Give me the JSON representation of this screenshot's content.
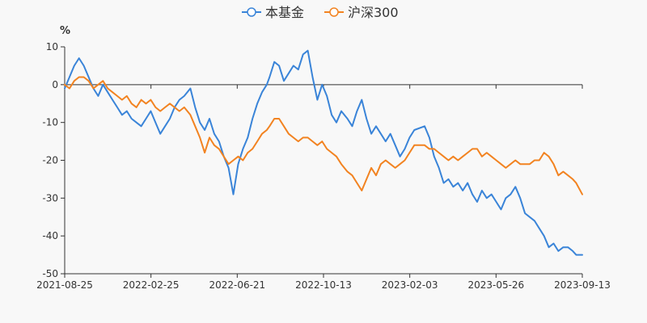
{
  "chart_data": {
    "type": "line",
    "ylabel": "%",
    "ylim": [
      -50,
      10
    ],
    "yticks": [
      10,
      0,
      -10,
      -20,
      -30,
      -40,
      -50
    ],
    "xticks": [
      "2021-08-25",
      "2022-02-25",
      "2022-06-21",
      "2022-10-13",
      "2023-02-03",
      "2023-05-26",
      "2023-09-13"
    ],
    "xlim": [
      "2021-08-25",
      "2023-09-22"
    ],
    "legend_position": "top-center",
    "grid": false,
    "series": [
      {
        "name": "本基金",
        "color": "#3a84d8",
        "points": [
          [
            "2021-08-25",
            -1
          ],
          [
            "2021-09-01",
            2
          ],
          [
            "2021-09-08",
            5
          ],
          [
            "2021-09-15",
            7
          ],
          [
            "2021-09-22",
            5
          ],
          [
            "2021-09-29",
            2
          ],
          [
            "2021-10-06",
            -1
          ],
          [
            "2021-10-13",
            -3
          ],
          [
            "2021-10-20",
            0
          ],
          [
            "2021-10-27",
            -2
          ],
          [
            "2021-11-03",
            -4
          ],
          [
            "2021-11-10",
            -6
          ],
          [
            "2021-11-17",
            -8
          ],
          [
            "2021-11-24",
            -7
          ],
          [
            "2021-12-01",
            -9
          ],
          [
            "2021-12-08",
            -10
          ],
          [
            "2021-12-15",
            -11
          ],
          [
            "2021-12-22",
            -9
          ],
          [
            "2021-12-29",
            -7
          ],
          [
            "2022-01-05",
            -10
          ],
          [
            "2022-01-12",
            -13
          ],
          [
            "2022-01-19",
            -11
          ],
          [
            "2022-01-26",
            -9
          ],
          [
            "2022-02-02",
            -6
          ],
          [
            "2022-02-09",
            -4
          ],
          [
            "2022-02-16",
            -3
          ],
          [
            "2022-02-25",
            -1
          ],
          [
            "2022-03-04",
            -6
          ],
          [
            "2022-03-11",
            -10
          ],
          [
            "2022-03-18",
            -12
          ],
          [
            "2022-03-25",
            -9
          ],
          [
            "2022-04-01",
            -13
          ],
          [
            "2022-04-08",
            -15
          ],
          [
            "2022-04-15",
            -19
          ],
          [
            "2022-04-22",
            -22
          ],
          [
            "2022-04-29",
            -29
          ],
          [
            "2022-05-06",
            -21
          ],
          [
            "2022-05-13",
            -17
          ],
          [
            "2022-05-20",
            -14
          ],
          [
            "2022-05-27",
            -9
          ],
          [
            "2022-06-03",
            -5
          ],
          [
            "2022-06-10",
            -2
          ],
          [
            "2022-06-17",
            0
          ],
          [
            "2022-06-21",
            2
          ],
          [
            "2022-06-28",
            6
          ],
          [
            "2022-07-05",
            5
          ],
          [
            "2022-07-12",
            1
          ],
          [
            "2022-07-19",
            3
          ],
          [
            "2022-07-26",
            5
          ],
          [
            "2022-08-02",
            4
          ],
          [
            "2022-08-09",
            8
          ],
          [
            "2022-08-16",
            9
          ],
          [
            "2022-08-23",
            2
          ],
          [
            "2022-08-30",
            -4
          ],
          [
            "2022-09-06",
            0
          ],
          [
            "2022-09-13",
            -3
          ],
          [
            "2022-09-20",
            -8
          ],
          [
            "2022-09-27",
            -10
          ],
          [
            "2022-10-04",
            -7
          ],
          [
            "2022-10-13",
            -9
          ],
          [
            "2022-10-20",
            -11
          ],
          [
            "2022-10-27",
            -7
          ],
          [
            "2022-11-03",
            -4
          ],
          [
            "2022-11-10",
            -9
          ],
          [
            "2022-11-17",
            -13
          ],
          [
            "2022-11-24",
            -11
          ],
          [
            "2022-12-01",
            -13
          ],
          [
            "2022-12-08",
            -15
          ],
          [
            "2022-12-15",
            -13
          ],
          [
            "2022-12-22",
            -16
          ],
          [
            "2022-12-29",
            -19
          ],
          [
            "2023-01-05",
            -17
          ],
          [
            "2023-01-12",
            -14
          ],
          [
            "2023-01-19",
            -12
          ],
          [
            "2023-02-03",
            -11
          ],
          [
            "2023-02-10",
            -14
          ],
          [
            "2023-02-17",
            -19
          ],
          [
            "2023-02-24",
            -22
          ],
          [
            "2023-03-03",
            -26
          ],
          [
            "2023-03-10",
            -25
          ],
          [
            "2023-03-17",
            -27
          ],
          [
            "2023-03-24",
            -26
          ],
          [
            "2023-03-31",
            -28
          ],
          [
            "2023-04-07",
            -26
          ],
          [
            "2023-04-14",
            -29
          ],
          [
            "2023-04-21",
            -31
          ],
          [
            "2023-04-28",
            -28
          ],
          [
            "2023-05-05",
            -30
          ],
          [
            "2023-05-12",
            -29
          ],
          [
            "2023-05-19",
            -31
          ],
          [
            "2023-05-26",
            -33
          ],
          [
            "2023-06-02",
            -30
          ],
          [
            "2023-06-09",
            -29
          ],
          [
            "2023-06-16",
            -27
          ],
          [
            "2023-06-23",
            -30
          ],
          [
            "2023-06-30",
            -34
          ],
          [
            "2023-07-07",
            -35
          ],
          [
            "2023-07-14",
            -36
          ],
          [
            "2023-07-21",
            -38
          ],
          [
            "2023-07-28",
            -40
          ],
          [
            "2023-08-04",
            -43
          ],
          [
            "2023-08-11",
            -42
          ],
          [
            "2023-08-18",
            -44
          ],
          [
            "2023-08-25",
            -43
          ],
          [
            "2023-09-01",
            -43
          ],
          [
            "2023-09-08",
            -44
          ],
          [
            "2023-09-13",
            -45
          ],
          [
            "2023-09-22",
            -45
          ]
        ]
      },
      {
        "name": "沪深300",
        "color": "#f28321",
        "points": [
          [
            "2021-08-25",
            0
          ],
          [
            "2021-09-01",
            -1
          ],
          [
            "2021-09-08",
            1
          ],
          [
            "2021-09-15",
            2
          ],
          [
            "2021-09-22",
            2
          ],
          [
            "2021-09-29",
            1
          ],
          [
            "2021-10-06",
            -1
          ],
          [
            "2021-10-13",
            0
          ],
          [
            "2021-10-20",
            1
          ],
          [
            "2021-10-27",
            -1
          ],
          [
            "2021-11-03",
            -2
          ],
          [
            "2021-11-10",
            -3
          ],
          [
            "2021-11-17",
            -4
          ],
          [
            "2021-11-24",
            -3
          ],
          [
            "2021-12-01",
            -5
          ],
          [
            "2021-12-08",
            -6
          ],
          [
            "2021-12-15",
            -4
          ],
          [
            "2021-12-22",
            -5
          ],
          [
            "2021-12-29",
            -4
          ],
          [
            "2022-01-05",
            -6
          ],
          [
            "2022-01-12",
            -7
          ],
          [
            "2022-01-19",
            -6
          ],
          [
            "2022-01-26",
            -5
          ],
          [
            "2022-02-02",
            -6
          ],
          [
            "2022-02-09",
            -7
          ],
          [
            "2022-02-16",
            -6
          ],
          [
            "2022-02-25",
            -8
          ],
          [
            "2022-03-04",
            -11
          ],
          [
            "2022-03-11",
            -14
          ],
          [
            "2022-03-18",
            -18
          ],
          [
            "2022-03-25",
            -14
          ],
          [
            "2022-04-01",
            -16
          ],
          [
            "2022-04-08",
            -17
          ],
          [
            "2022-04-15",
            -19
          ],
          [
            "2022-04-22",
            -21
          ],
          [
            "2022-04-29",
            -20
          ],
          [
            "2022-05-06",
            -19
          ],
          [
            "2022-05-13",
            -20
          ],
          [
            "2022-05-20",
            -18
          ],
          [
            "2022-05-27",
            -17
          ],
          [
            "2022-06-03",
            -15
          ],
          [
            "2022-06-10",
            -13
          ],
          [
            "2022-06-17",
            -12
          ],
          [
            "2022-06-21",
            -11
          ],
          [
            "2022-06-28",
            -9
          ],
          [
            "2022-07-05",
            -9
          ],
          [
            "2022-07-12",
            -11
          ],
          [
            "2022-07-19",
            -13
          ],
          [
            "2022-07-26",
            -14
          ],
          [
            "2022-08-02",
            -15
          ],
          [
            "2022-08-09",
            -14
          ],
          [
            "2022-08-16",
            -14
          ],
          [
            "2022-08-23",
            -15
          ],
          [
            "2022-08-30",
            -16
          ],
          [
            "2022-09-06",
            -15
          ],
          [
            "2022-09-13",
            -17
          ],
          [
            "2022-09-20",
            -18
          ],
          [
            "2022-09-27",
            -19
          ],
          [
            "2022-10-04",
            -21
          ],
          [
            "2022-10-13",
            -23
          ],
          [
            "2022-10-20",
            -24
          ],
          [
            "2022-10-27",
            -26
          ],
          [
            "2022-11-03",
            -28
          ],
          [
            "2022-11-10",
            -25
          ],
          [
            "2022-11-17",
            -22
          ],
          [
            "2022-11-24",
            -24
          ],
          [
            "2022-12-01",
            -21
          ],
          [
            "2022-12-08",
            -20
          ],
          [
            "2022-12-15",
            -21
          ],
          [
            "2022-12-22",
            -22
          ],
          [
            "2022-12-29",
            -21
          ],
          [
            "2023-01-05",
            -20
          ],
          [
            "2023-01-12",
            -18
          ],
          [
            "2023-01-19",
            -16
          ],
          [
            "2023-02-03",
            -16
          ],
          [
            "2023-02-10",
            -17
          ],
          [
            "2023-02-17",
            -17
          ],
          [
            "2023-02-24",
            -18
          ],
          [
            "2023-03-03",
            -19
          ],
          [
            "2023-03-10",
            -20
          ],
          [
            "2023-03-17",
            -19
          ],
          [
            "2023-03-24",
            -20
          ],
          [
            "2023-03-31",
            -19
          ],
          [
            "2023-04-07",
            -18
          ],
          [
            "2023-04-14",
            -17
          ],
          [
            "2023-04-21",
            -17
          ],
          [
            "2023-04-28",
            -19
          ],
          [
            "2023-05-05",
            -18
          ],
          [
            "2023-05-12",
            -19
          ],
          [
            "2023-05-19",
            -20
          ],
          [
            "2023-05-26",
            -21
          ],
          [
            "2023-06-02",
            -22
          ],
          [
            "2023-06-09",
            -21
          ],
          [
            "2023-06-16",
            -20
          ],
          [
            "2023-06-23",
            -21
          ],
          [
            "2023-06-30",
            -21
          ],
          [
            "2023-07-07",
            -21
          ],
          [
            "2023-07-14",
            -20
          ],
          [
            "2023-07-21",
            -20
          ],
          [
            "2023-07-28",
            -18
          ],
          [
            "2023-08-04",
            -19
          ],
          [
            "2023-08-11",
            -21
          ],
          [
            "2023-08-18",
            -24
          ],
          [
            "2023-08-25",
            -23
          ],
          [
            "2023-09-01",
            -24
          ],
          [
            "2023-09-08",
            -25
          ],
          [
            "2023-09-13",
            -26
          ],
          [
            "2023-09-22",
            -29
          ]
        ]
      }
    ]
  }
}
